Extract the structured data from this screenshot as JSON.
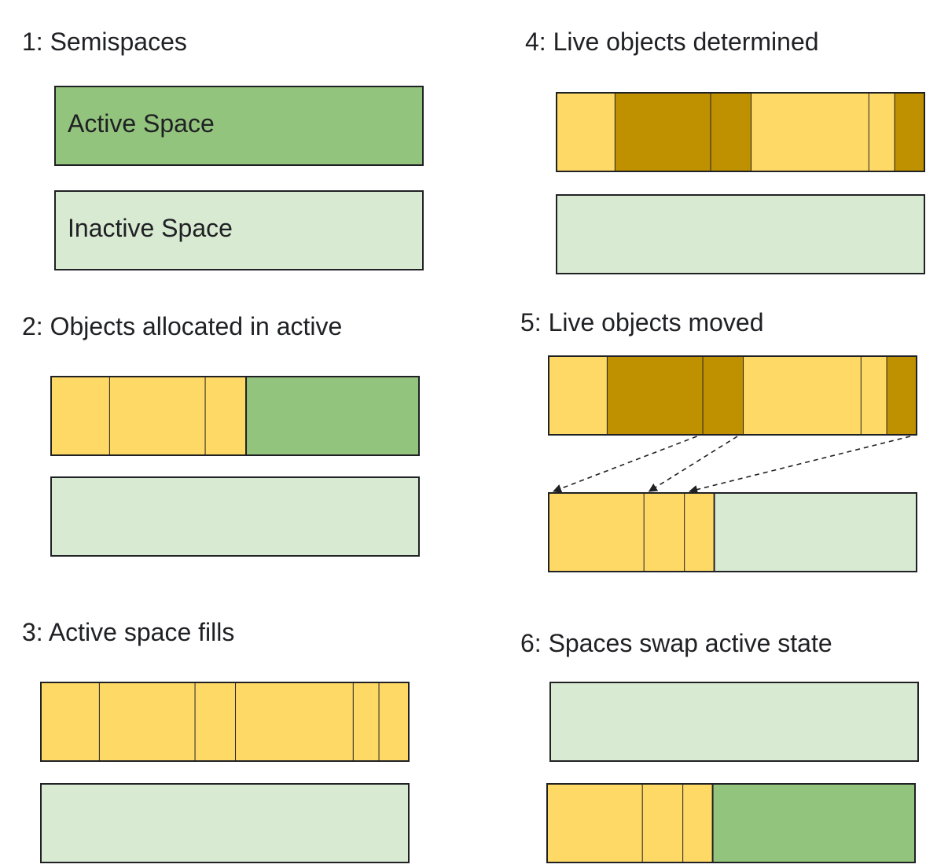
{
  "colors": {
    "active": "#93c47d",
    "inactive": "#d9ead3",
    "object": "#ffd966",
    "live_object": "#bf9000",
    "outline": "#202124"
  },
  "steps": [
    {
      "title": "1: Semispaces",
      "spaces": [
        {
          "role": "active",
          "label": "Active Space",
          "objects": []
        },
        {
          "role": "inactive",
          "label": "Inactive Space",
          "objects": []
        }
      ]
    },
    {
      "title": "2: Objects allocated in active",
      "spaces": [
        {
          "role": "active",
          "label": "",
          "objects": [
            {
              "size": 16,
              "live": false
            },
            {
              "size": 26,
              "live": false
            },
            {
              "size": 11,
              "live": false
            }
          ]
        },
        {
          "role": "inactive",
          "label": "",
          "objects": []
        }
      ]
    },
    {
      "title": "3: Active space fills",
      "spaces": [
        {
          "role": "active",
          "label": "",
          "objects": [
            {
              "size": 16,
              "live": false
            },
            {
              "size": 26,
              "live": false
            },
            {
              "size": 11,
              "live": false
            },
            {
              "size": 32,
              "live": false
            },
            {
              "size": 7,
              "live": false
            },
            {
              "size": 8,
              "live": false
            }
          ]
        },
        {
          "role": "inactive",
          "label": "",
          "objects": []
        }
      ]
    },
    {
      "title": "4: Live objects determined",
      "spaces": [
        {
          "role": "active",
          "label": "",
          "objects": [
            {
              "size": 16,
              "live": false
            },
            {
              "size": 26,
              "live": true
            },
            {
              "size": 11,
              "live": true
            },
            {
              "size": 32,
              "live": false
            },
            {
              "size": 7,
              "live": false
            },
            {
              "size": 8,
              "live": true
            }
          ]
        },
        {
          "role": "inactive",
          "label": "",
          "objects": []
        }
      ]
    },
    {
      "title": "5: Live objects moved",
      "spaces": [
        {
          "role": "active",
          "label": "",
          "objects": [
            {
              "size": 16,
              "live": false
            },
            {
              "size": 26,
              "live": true
            },
            {
              "size": 11,
              "live": true
            },
            {
              "size": 32,
              "live": false
            },
            {
              "size": 7,
              "live": false
            },
            {
              "size": 8,
              "live": true
            }
          ]
        },
        {
          "role": "inactive",
          "label": "",
          "objects": [
            {
              "size": 26,
              "live": false
            },
            {
              "size": 11,
              "live": false
            },
            {
              "size": 8,
              "live": false
            }
          ]
        }
      ],
      "moves": [
        [
          1,
          0
        ],
        [
          2,
          1
        ],
        [
          5,
          2
        ]
      ]
    },
    {
      "title": "6: Spaces swap active state",
      "spaces": [
        {
          "role": "inactive",
          "label": "",
          "objects": []
        },
        {
          "role": "active",
          "label": "",
          "objects": [
            {
              "size": 26,
              "live": false
            },
            {
              "size": 11,
              "live": false
            },
            {
              "size": 8,
              "live": false
            }
          ]
        }
      ]
    }
  ]
}
